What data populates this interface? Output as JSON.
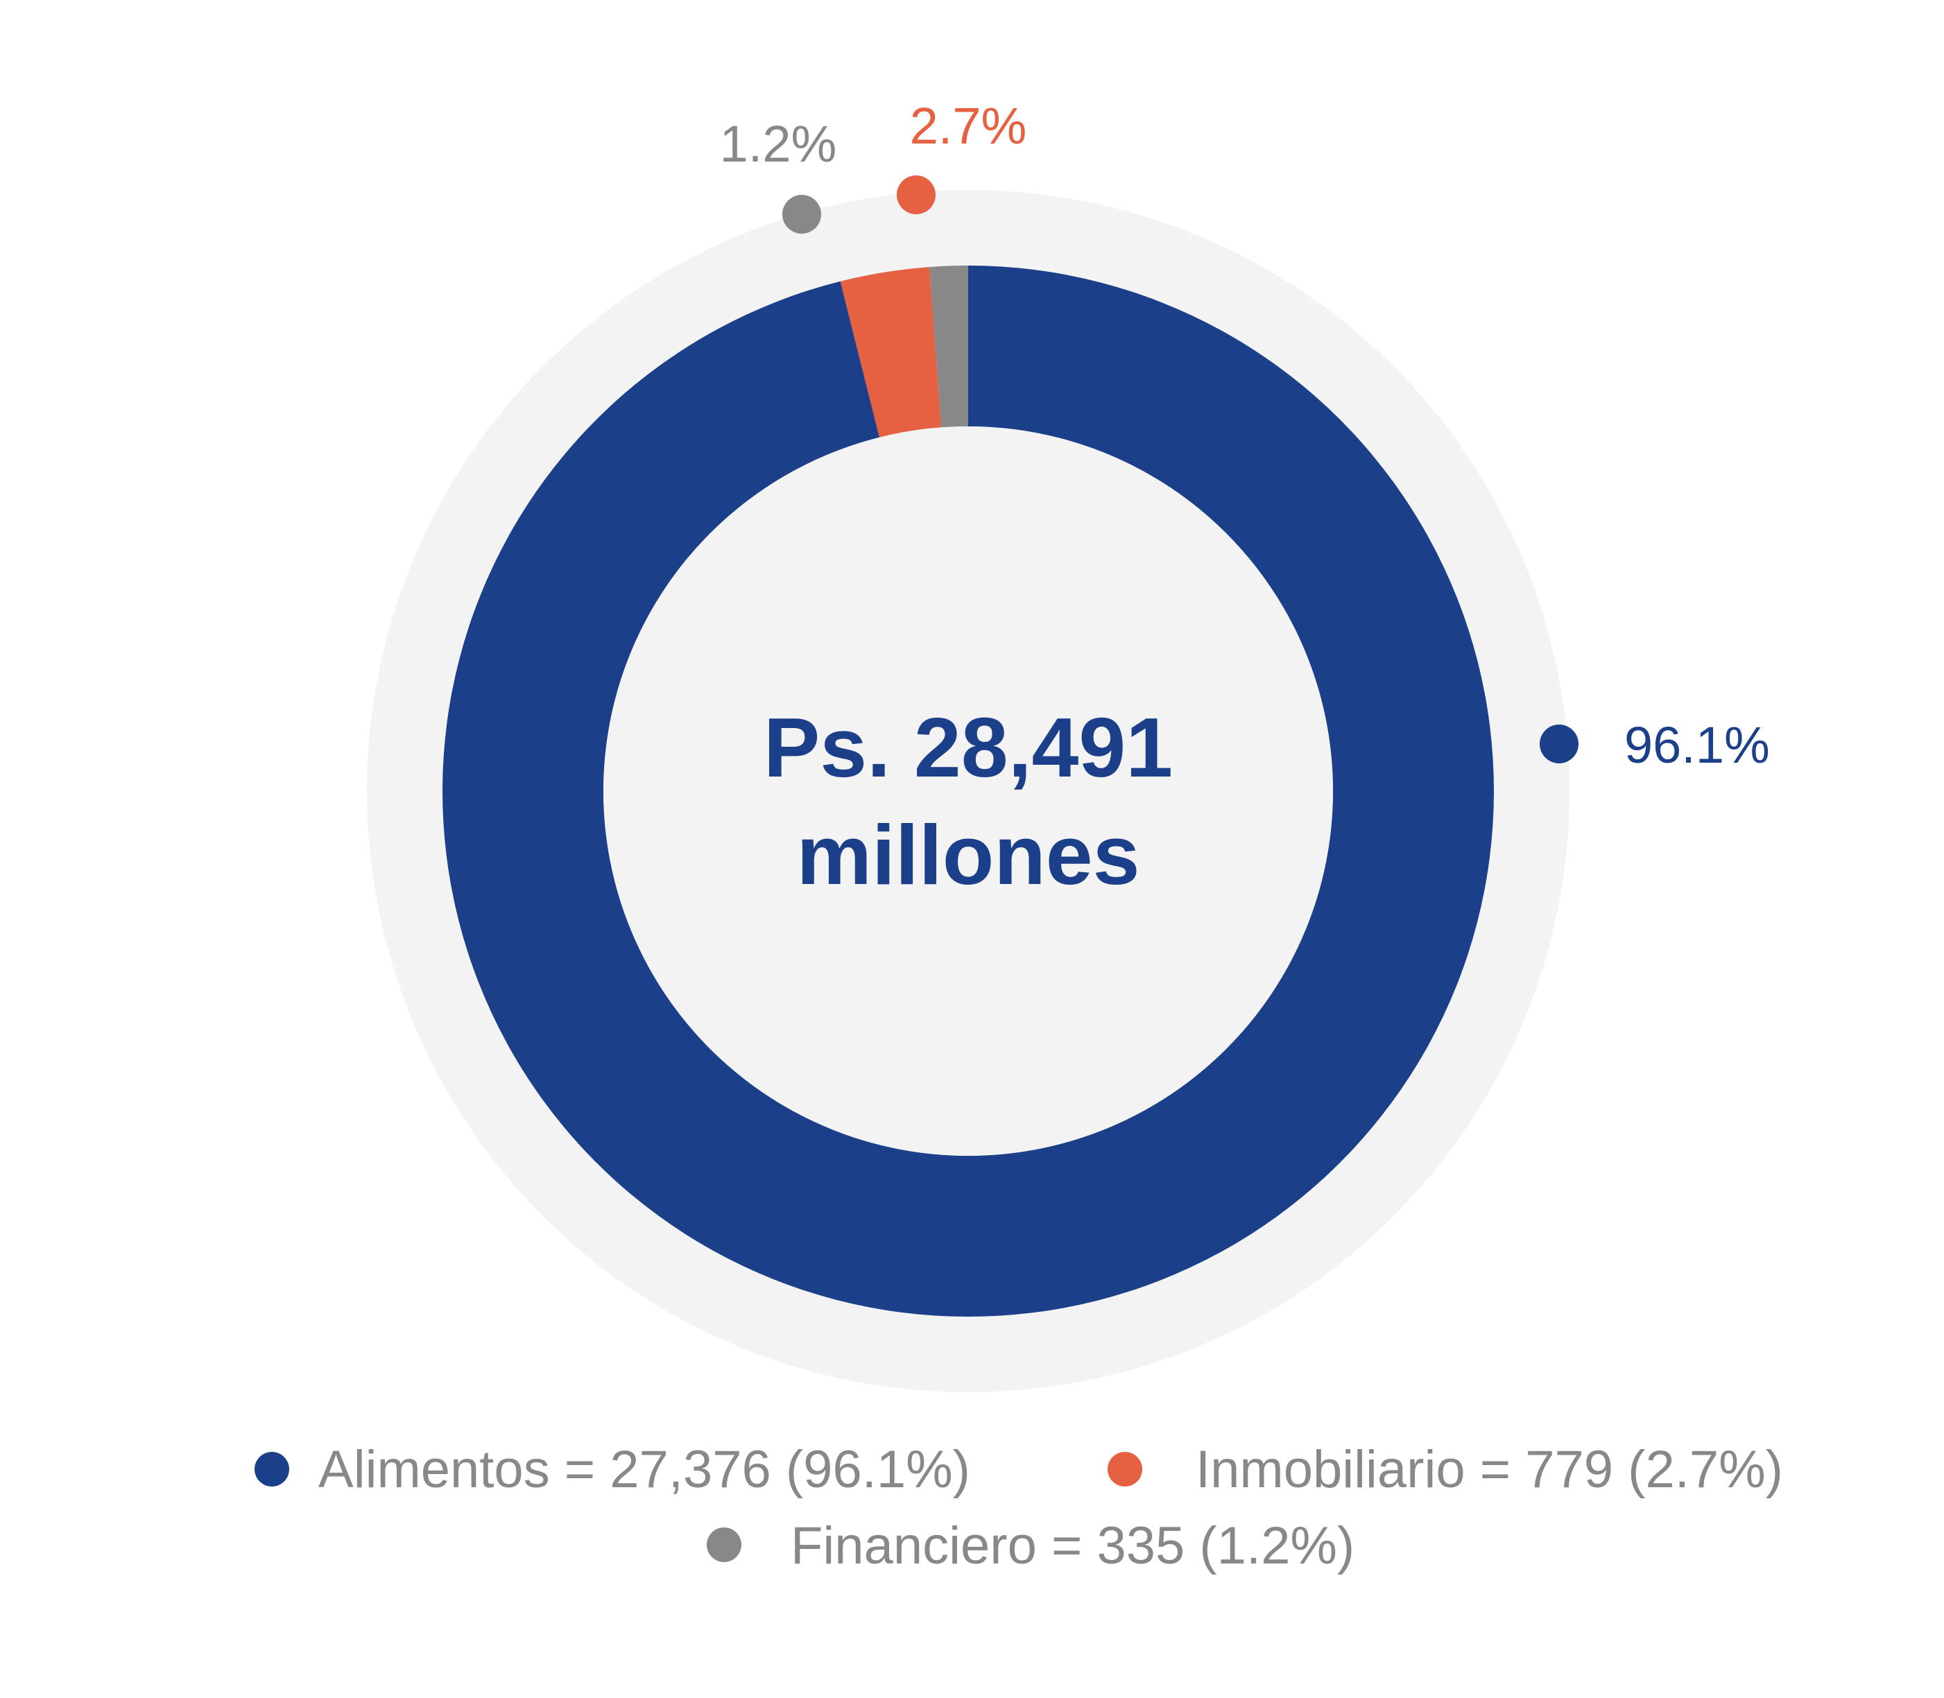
{
  "chart_data": {
    "type": "pie",
    "variant": "donut",
    "title": "",
    "center_label": [
      "Ps. 28,491",
      "millones"
    ],
    "total": 28491,
    "unit": "millones",
    "series": [
      {
        "name": "Alimentos",
        "value": 27376,
        "percent": 96.1,
        "percent_label": "96.1%",
        "color": "#1c3f8a",
        "legend_label": "Alimentos = 27,376 (96.1%)"
      },
      {
        "name": "Inmobiliario",
        "value": 779,
        "percent": 2.7,
        "percent_label": "2.7%",
        "color": "#e66142",
        "legend_label": "Inmobiliario = 779 (2.7%)"
      },
      {
        "name": "Financiero",
        "value": 335,
        "percent": 1.2,
        "percent_label": "1.2%",
        "color": "#888888",
        "legend_label": "Financiero = 335 (1.2%)"
      }
    ],
    "background_ring_color": "#f3f3f4",
    "legend_position": "bottom"
  }
}
